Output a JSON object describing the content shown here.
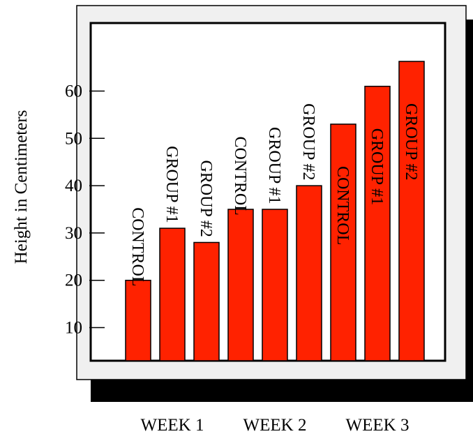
{
  "chart_data": {
    "type": "bar",
    "ylabel": "Height in Centimeters",
    "xlabel": "",
    "ylim": [
      3,
      67
    ],
    "y_ticks": [
      10,
      20,
      30,
      40,
      50,
      60
    ],
    "groups": [
      "WEEK 1",
      "WEEK 2",
      "WEEK 3"
    ],
    "series_names": [
      "CONTROL",
      "GROUP #1",
      "GROUP #2"
    ],
    "bars": [
      {
        "group": "WEEK 1",
        "label": "CONTROL",
        "value": 20
      },
      {
        "group": "WEEK 1",
        "label": "GROUP #1",
        "value": 31
      },
      {
        "group": "WEEK 1",
        "label": "GROUP #2",
        "value": 28
      },
      {
        "group": "WEEK 2",
        "label": "CONTROL",
        "value": 35
      },
      {
        "group": "WEEK 2",
        "label": "GROUP #1",
        "value": 35
      },
      {
        "group": "WEEK 2",
        "label": "GROUP #2",
        "value": 40
      },
      {
        "group": "WEEK 3",
        "label": "CONTROL",
        "value": 53
      },
      {
        "group": "WEEK 3",
        "label": "GROUP #1",
        "value": 61
      },
      {
        "group": "WEEK 3",
        "label": "GROUP #2",
        "value": 71
      }
    ],
    "legend": "none",
    "grid": false,
    "colors": {
      "bar_fill": "#ff2200",
      "panel_fill": "#f0f0f0",
      "plot_fill": "#ffffff",
      "shadow": "#000000"
    }
  }
}
